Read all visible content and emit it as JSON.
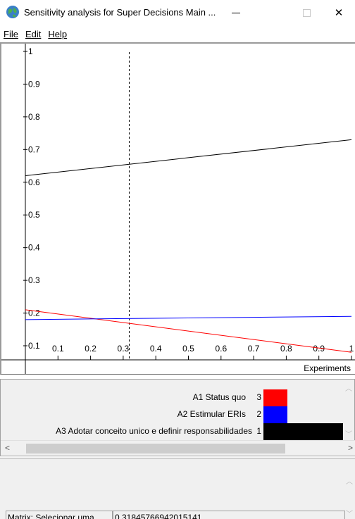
{
  "window": {
    "title": "Sensitivity analysis for Super Decisions Main ...",
    "minimize_glyph": "—",
    "maximize_glyph": "☐",
    "close_glyph": "✕"
  },
  "menu": {
    "file": "File",
    "edit": "Edit",
    "help": "Help"
  },
  "chart_data": {
    "type": "line",
    "xlabel": "Experiments",
    "ylabel": "",
    "xlim": [
      0,
      1
    ],
    "ylim": [
      0.04,
      1.0
    ],
    "x_ticks": [
      "0.1",
      "0.2",
      "0.3",
      "0.4",
      "0.5",
      "0.6",
      "0.7",
      "0.8",
      "0.9",
      "1"
    ],
    "y_ticks": [
      "0.1",
      "0.2",
      "0.3",
      "0.4",
      "0.5",
      "0.6",
      "0.7",
      "0.8",
      "0.9",
      "1"
    ],
    "grid": false,
    "marker_x": 0.3185,
    "series": [
      {
        "name": "A1 Status quo",
        "color": "#ff0000",
        "x": [
          0,
          1
        ],
        "y": [
          0.21,
          0.08
        ]
      },
      {
        "name": "A2 Estimular ERIs",
        "color": "#0000ff",
        "x": [
          0,
          1
        ],
        "y": [
          0.18,
          0.19
        ]
      },
      {
        "name": "A3 Adotar conceito unico e definir responsabilidades",
        "color": "#000000",
        "x": [
          0,
          1
        ],
        "y": [
          0.62,
          0.73
        ]
      }
    ]
  },
  "legend": {
    "items": [
      {
        "label": "A1 Status quo",
        "rank": "3",
        "color": "#ff0000",
        "swatch_width": 34
      },
      {
        "label": "A2 Estimular ERIs",
        "rank": "2",
        "color": "#0000ff",
        "swatch_width": 34
      },
      {
        "label": "A3 Adotar conceito unico e definir responsabilidades",
        "rank": "1",
        "color": "#000000",
        "swatch_width": 115
      }
    ]
  },
  "matrix": {
    "label": "Matrix: Selecionar uma",
    "value": "0.31845766942015141"
  },
  "colors": {
    "panel_bg": "#f0f0f0",
    "border": "#a0a0a0"
  },
  "icons": {
    "app": "globe-icon",
    "scroll_left": "chevron-left-icon",
    "scroll_right": "chevron-right-icon",
    "scroll_up": "chevron-up-icon",
    "scroll_down": "chevron-down-icon"
  }
}
